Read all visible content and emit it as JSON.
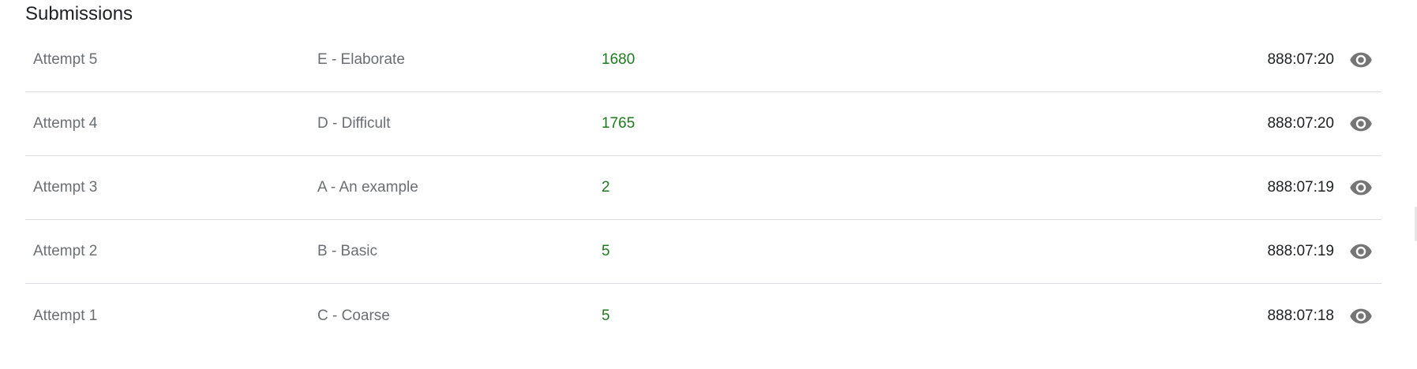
{
  "section": {
    "title": "Submissions"
  },
  "submissions": [
    {
      "attempt": "Attempt 5",
      "problem": "E - Elaborate",
      "score": "1680",
      "time": "888:07:20",
      "action_icon": "eye-icon"
    },
    {
      "attempt": "Attempt 4",
      "problem": "D - Difficult",
      "score": "1765",
      "time": "888:07:20",
      "action_icon": "eye-icon"
    },
    {
      "attempt": "Attempt 3",
      "problem": "A - An example",
      "score": "2",
      "time": "888:07:19",
      "action_icon": "eye-icon"
    },
    {
      "attempt": "Attempt 2",
      "problem": "B - Basic",
      "score": "5",
      "time": "888:07:19",
      "action_icon": "eye-icon"
    },
    {
      "attempt": "Attempt 1",
      "problem": "C - Coarse",
      "score": "5",
      "time": "888:07:18",
      "action_icon": "eye-icon"
    }
  ],
  "colors": {
    "score_text": "#1e7a1e",
    "muted_text": "#6a6f74",
    "icon": "#757575",
    "divider": "#dadce0"
  }
}
